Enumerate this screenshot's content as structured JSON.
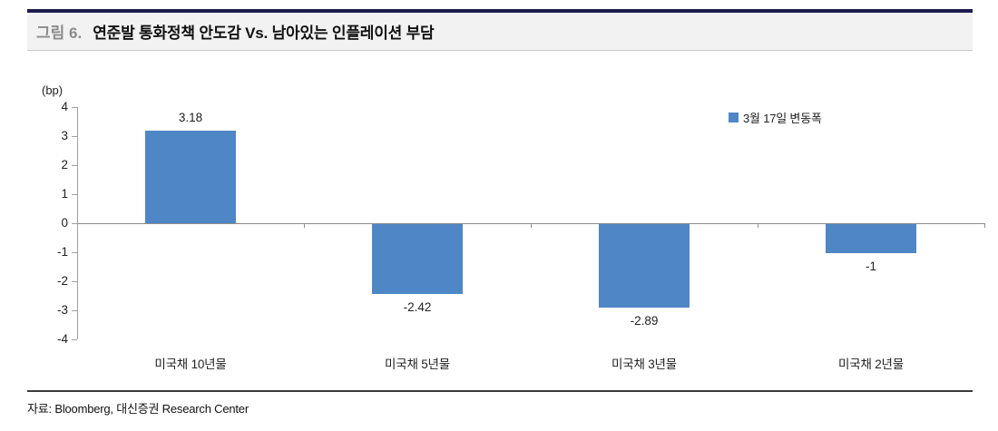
{
  "header": {
    "figure_label": "그림 6.",
    "title": "연준발 통화정책 안도감 Vs. 남아있는 인플레이션 부담"
  },
  "chart_data": {
    "type": "bar",
    "title": "연준발 통화정책 안도감 Vs. 남아있는 인플레이션 부담",
    "categories": [
      "미국채 10년물",
      "미국채 5년물",
      "미국채 3년물",
      "미국채 2년물"
    ],
    "values": [
      3.18,
      -2.42,
      -2.89,
      -1
    ],
    "value_labels": [
      "3.18",
      "-2.42",
      "-2.89",
      "-1"
    ],
    "unit_label": "(bp)",
    "legend": "3월 17일 변동폭",
    "legend_position": "top-right",
    "ylim": [
      -4,
      4
    ],
    "yticks": [
      4,
      3,
      2,
      1,
      0,
      -1,
      -2,
      -3,
      -4
    ],
    "ytick_labels": [
      "4",
      "3",
      "2",
      "1",
      "0",
      "-1",
      "-2",
      "-3",
      "-4"
    ],
    "grid": false,
    "bar_color": "#4f86c6"
  },
  "footer": {
    "source": "자료: Bloomberg, 대신증권 Research Center"
  }
}
